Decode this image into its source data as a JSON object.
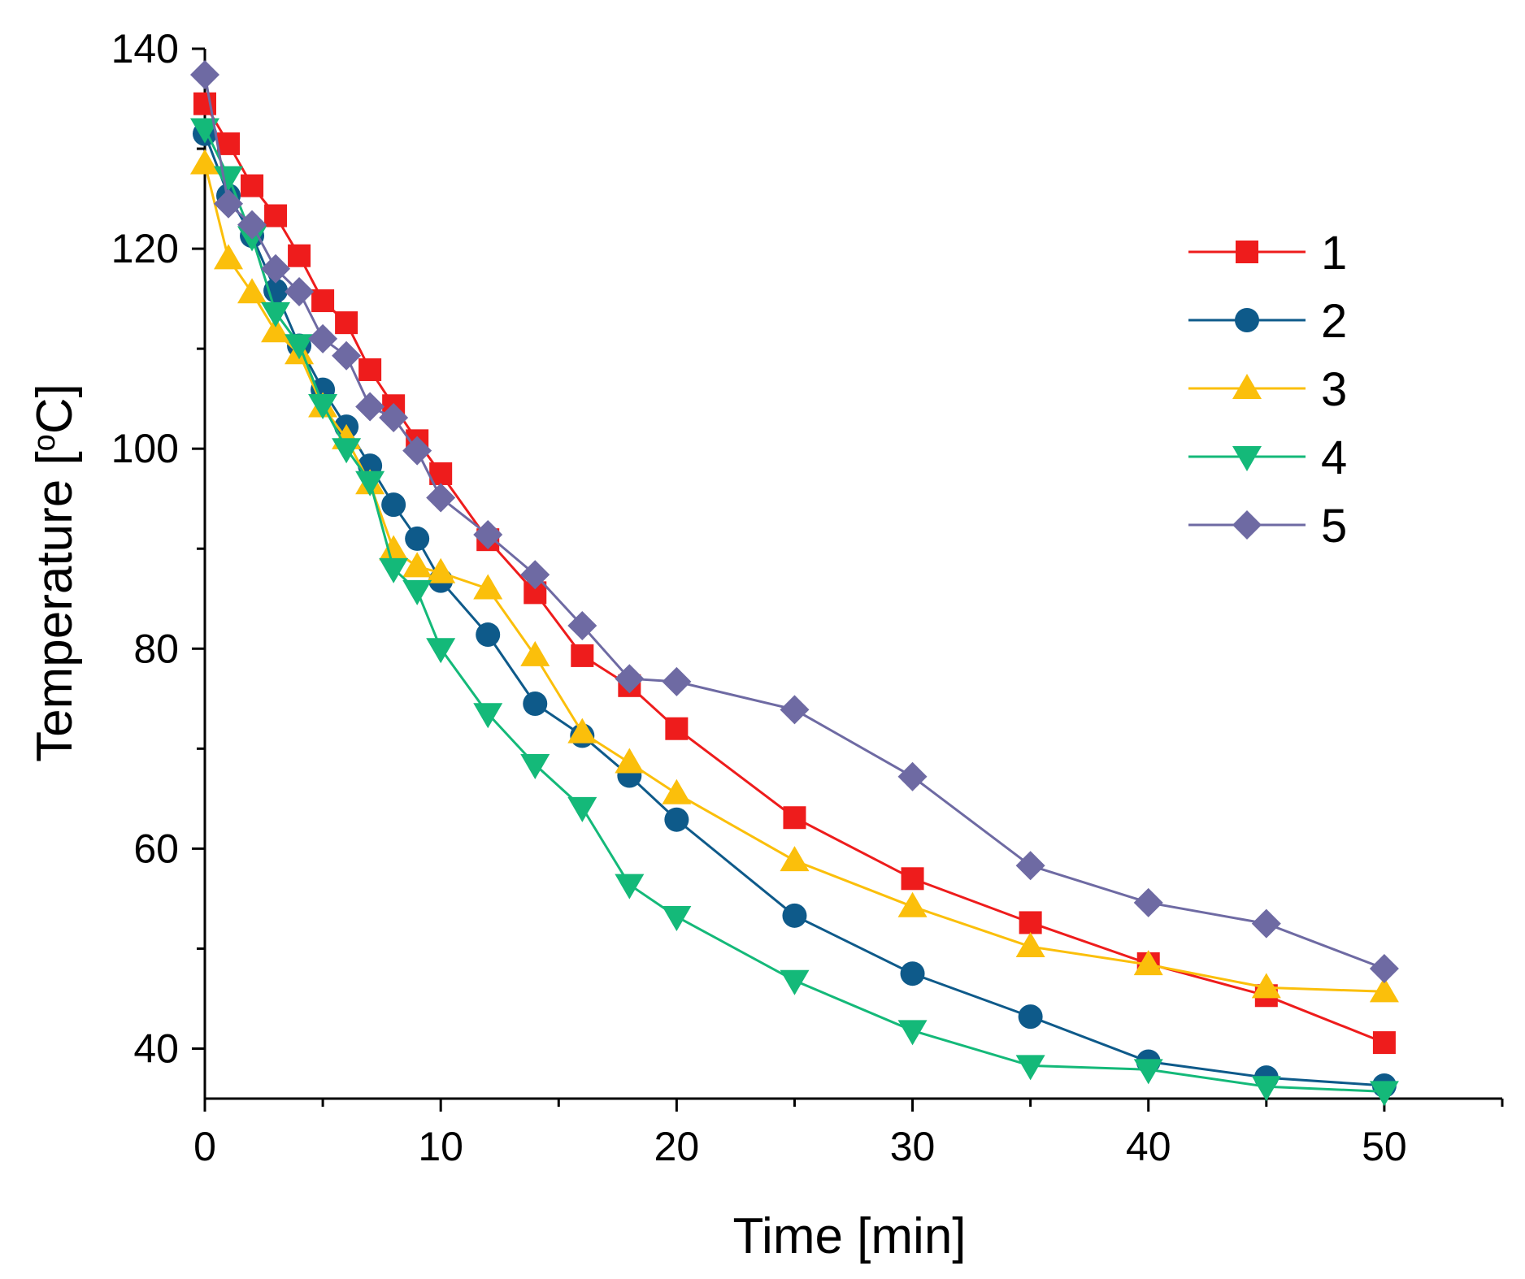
{
  "chart_data": {
    "type": "line",
    "title": "",
    "xlabel": "Time [min]",
    "ylabel_parts": {
      "pre": "Temperature [",
      "sup": "o",
      "post": "C]"
    },
    "xlim": [
      0,
      55
    ],
    "ylim": [
      35,
      140
    ],
    "xticks": [
      0,
      10,
      20,
      30,
      40,
      50
    ],
    "yticks": [
      40,
      60,
      80,
      100,
      120,
      140
    ],
    "x_minor_ticks": [
      5,
      15,
      25,
      35,
      45,
      55
    ],
    "y_minor_ticks": [
      50,
      70,
      90,
      110,
      130
    ],
    "grid": false,
    "legend_position": "top-right",
    "x": [
      0,
      1,
      2,
      3,
      4,
      5,
      6,
      7,
      8,
      9,
      10,
      12,
      14,
      16,
      18,
      20,
      25,
      30,
      35,
      40,
      45,
      50
    ],
    "series": [
      {
        "name": "1",
        "color": "#ee1c1c",
        "marker": "square",
        "values": [
          134.5,
          130.5,
          126.3,
          123.3,
          119.3,
          114.8,
          112.6,
          107.9,
          104.3,
          100.8,
          97.5,
          90.9,
          85.6,
          79.3,
          76.3,
          72.0,
          63.1,
          57.0,
          52.6,
          48.5,
          45.3,
          40.6
        ]
      },
      {
        "name": "2",
        "color": "#0e5a8a",
        "marker": "circle",
        "values": [
          131.5,
          125.3,
          121.3,
          115.8,
          110.3,
          105.9,
          102.2,
          98.3,
          94.4,
          91.0,
          86.8,
          81.4,
          74.5,
          71.3,
          67.3,
          62.9,
          53.3,
          47.5,
          43.2,
          38.7,
          37.1,
          36.3
        ]
      },
      {
        "name": "3",
        "color": "#fbbf0b",
        "marker": "triangle-up",
        "values": [
          128.5,
          119.0,
          115.6,
          111.7,
          109.5,
          104.2,
          101.0,
          96.5,
          89.9,
          88.2,
          87.6,
          86.0,
          79.3,
          71.6,
          68.6,
          65.5,
          58.8,
          54.2,
          50.2,
          48.4,
          46.1,
          45.7
        ]
      },
      {
        "name": "4",
        "color": "#14b979",
        "marker": "triangle-down",
        "values": [
          132.0,
          127.2,
          121.2,
          113.6,
          110.4,
          104.4,
          100.0,
          96.7,
          88.0,
          85.8,
          80.0,
          73.5,
          68.4,
          64.1,
          56.4,
          53.2,
          46.8,
          41.8,
          38.3,
          37.9,
          36.2,
          35.7
        ]
      },
      {
        "name": "5",
        "color": "#6e6aa3",
        "marker": "diamond",
        "values": [
          137.4,
          124.5,
          122.4,
          118.0,
          115.7,
          111.0,
          109.3,
          104.2,
          103.1,
          99.8,
          95.1,
          91.4,
          87.4,
          82.3,
          77.0,
          76.7,
          73.9,
          67.2,
          58.3,
          54.6,
          52.5,
          48.0
        ]
      }
    ]
  }
}
